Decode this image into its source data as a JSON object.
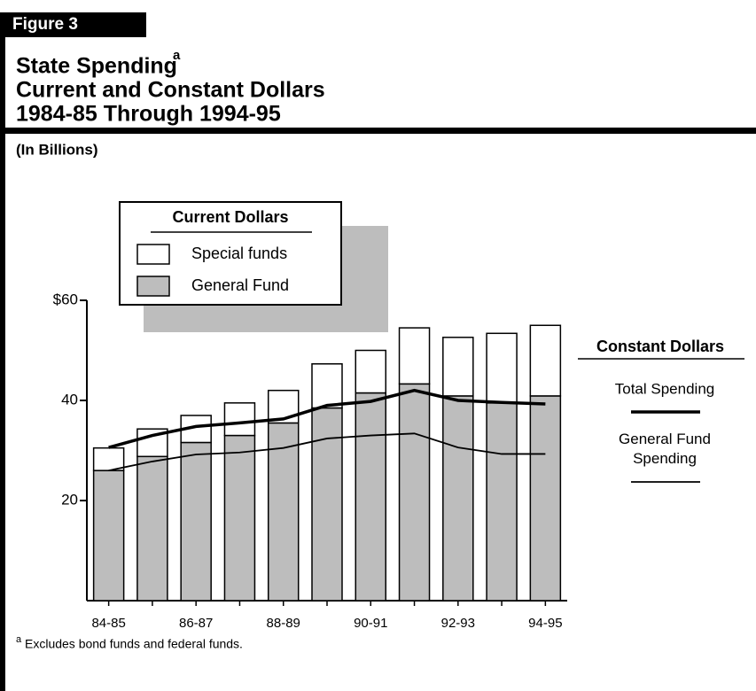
{
  "chart_data": {
    "type": "bar",
    "stacked": true,
    "figure_label": "Figure 3",
    "title": "State Spending",
    "title_note": "a",
    "subtitle": [
      "Current and Constant Dollars",
      "1984-85 Through 1994-95"
    ],
    "y_label": "(In Billions)",
    "categories": [
      "84-85",
      null,
      "86-87",
      null,
      "88-89",
      null,
      "90-91",
      null,
      "92-93",
      null,
      "94-95"
    ],
    "legend_titles": [
      "Current Dollars",
      "Constant Dollars"
    ],
    "series": [
      {
        "name": "General Fund",
        "kind": "bar",
        "group": 0,
        "color": "#bdbdbd",
        "values": [
          26,
          28.8,
          31.6,
          33,
          35.5,
          38.5,
          41.5,
          43.3,
          40.9,
          39.5,
          40.9
        ]
      },
      {
        "name": "Special funds",
        "kind": "bar",
        "group": 0,
        "color": "#ffffff",
        "values": [
          4.5,
          5.5,
          5.4,
          6.5,
          6.5,
          8.8,
          8.5,
          11.2,
          11.7,
          13.9,
          14.1
        ]
      },
      {
        "name": "Total Spending",
        "kind": "line",
        "group": 1,
        "color": "#000000",
        "width": 3.5,
        "values": [
          30.6,
          33,
          34.8,
          35.5,
          36.3,
          39,
          39.8,
          42,
          40,
          39.6,
          39.3
        ]
      },
      {
        "name": "General Fund Spending",
        "kind": "line",
        "group": 1,
        "color": "#000000",
        "width": 1.8,
        "values": [
          26,
          27.8,
          29.2,
          29.6,
          30.5,
          32.4,
          33,
          33.4,
          30.6,
          29.3,
          29.3
        ]
      }
    ],
    "ylim": [
      0,
      60
    ],
    "yticks": [
      20,
      40,
      {
        "value": 60,
        "label": "$60"
      }
    ],
    "footnote": {
      "marker": "a",
      "text": "Excludes bond funds and federal funds."
    }
  }
}
